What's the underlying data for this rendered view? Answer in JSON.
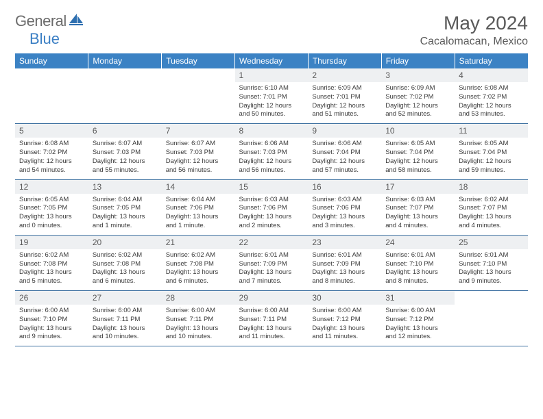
{
  "brand": {
    "part1": "General",
    "part2": "Blue"
  },
  "title": "May 2024",
  "location": "Cacalomacan, Mexico",
  "colors": {
    "header_bg": "#3b82c4",
    "header_text": "#ffffff",
    "daynum_bg": "#eef0f2",
    "row_divider": "#3b6fa0",
    "text": "#3a3a3a",
    "logo_gray": "#6b6b6b",
    "logo_blue": "#3b7fc4"
  },
  "weekdays": [
    "Sunday",
    "Monday",
    "Tuesday",
    "Wednesday",
    "Thursday",
    "Friday",
    "Saturday"
  ],
  "weeks": [
    [
      {
        "n": "",
        "d": ""
      },
      {
        "n": "",
        "d": ""
      },
      {
        "n": "",
        "d": ""
      },
      {
        "n": "1",
        "d": "Sunrise: 6:10 AM\nSunset: 7:01 PM\nDaylight: 12 hours and 50 minutes."
      },
      {
        "n": "2",
        "d": "Sunrise: 6:09 AM\nSunset: 7:01 PM\nDaylight: 12 hours and 51 minutes."
      },
      {
        "n": "3",
        "d": "Sunrise: 6:09 AM\nSunset: 7:02 PM\nDaylight: 12 hours and 52 minutes."
      },
      {
        "n": "4",
        "d": "Sunrise: 6:08 AM\nSunset: 7:02 PM\nDaylight: 12 hours and 53 minutes."
      }
    ],
    [
      {
        "n": "5",
        "d": "Sunrise: 6:08 AM\nSunset: 7:02 PM\nDaylight: 12 hours and 54 minutes."
      },
      {
        "n": "6",
        "d": "Sunrise: 6:07 AM\nSunset: 7:03 PM\nDaylight: 12 hours and 55 minutes."
      },
      {
        "n": "7",
        "d": "Sunrise: 6:07 AM\nSunset: 7:03 PM\nDaylight: 12 hours and 56 minutes."
      },
      {
        "n": "8",
        "d": "Sunrise: 6:06 AM\nSunset: 7:03 PM\nDaylight: 12 hours and 56 minutes."
      },
      {
        "n": "9",
        "d": "Sunrise: 6:06 AM\nSunset: 7:04 PM\nDaylight: 12 hours and 57 minutes."
      },
      {
        "n": "10",
        "d": "Sunrise: 6:05 AM\nSunset: 7:04 PM\nDaylight: 12 hours and 58 minutes."
      },
      {
        "n": "11",
        "d": "Sunrise: 6:05 AM\nSunset: 7:04 PM\nDaylight: 12 hours and 59 minutes."
      }
    ],
    [
      {
        "n": "12",
        "d": "Sunrise: 6:05 AM\nSunset: 7:05 PM\nDaylight: 13 hours and 0 minutes."
      },
      {
        "n": "13",
        "d": "Sunrise: 6:04 AM\nSunset: 7:05 PM\nDaylight: 13 hours and 1 minute."
      },
      {
        "n": "14",
        "d": "Sunrise: 6:04 AM\nSunset: 7:06 PM\nDaylight: 13 hours and 1 minute."
      },
      {
        "n": "15",
        "d": "Sunrise: 6:03 AM\nSunset: 7:06 PM\nDaylight: 13 hours and 2 minutes."
      },
      {
        "n": "16",
        "d": "Sunrise: 6:03 AM\nSunset: 7:06 PM\nDaylight: 13 hours and 3 minutes."
      },
      {
        "n": "17",
        "d": "Sunrise: 6:03 AM\nSunset: 7:07 PM\nDaylight: 13 hours and 4 minutes."
      },
      {
        "n": "18",
        "d": "Sunrise: 6:02 AM\nSunset: 7:07 PM\nDaylight: 13 hours and 4 minutes."
      }
    ],
    [
      {
        "n": "19",
        "d": "Sunrise: 6:02 AM\nSunset: 7:08 PM\nDaylight: 13 hours and 5 minutes."
      },
      {
        "n": "20",
        "d": "Sunrise: 6:02 AM\nSunset: 7:08 PM\nDaylight: 13 hours and 6 minutes."
      },
      {
        "n": "21",
        "d": "Sunrise: 6:02 AM\nSunset: 7:08 PM\nDaylight: 13 hours and 6 minutes."
      },
      {
        "n": "22",
        "d": "Sunrise: 6:01 AM\nSunset: 7:09 PM\nDaylight: 13 hours and 7 minutes."
      },
      {
        "n": "23",
        "d": "Sunrise: 6:01 AM\nSunset: 7:09 PM\nDaylight: 13 hours and 8 minutes."
      },
      {
        "n": "24",
        "d": "Sunrise: 6:01 AM\nSunset: 7:10 PM\nDaylight: 13 hours and 8 minutes."
      },
      {
        "n": "25",
        "d": "Sunrise: 6:01 AM\nSunset: 7:10 PM\nDaylight: 13 hours and 9 minutes."
      }
    ],
    [
      {
        "n": "26",
        "d": "Sunrise: 6:00 AM\nSunset: 7:10 PM\nDaylight: 13 hours and 9 minutes."
      },
      {
        "n": "27",
        "d": "Sunrise: 6:00 AM\nSunset: 7:11 PM\nDaylight: 13 hours and 10 minutes."
      },
      {
        "n": "28",
        "d": "Sunrise: 6:00 AM\nSunset: 7:11 PM\nDaylight: 13 hours and 10 minutes."
      },
      {
        "n": "29",
        "d": "Sunrise: 6:00 AM\nSunset: 7:11 PM\nDaylight: 13 hours and 11 minutes."
      },
      {
        "n": "30",
        "d": "Sunrise: 6:00 AM\nSunset: 7:12 PM\nDaylight: 13 hours and 11 minutes."
      },
      {
        "n": "31",
        "d": "Sunrise: 6:00 AM\nSunset: 7:12 PM\nDaylight: 13 hours and 12 minutes."
      },
      {
        "n": "",
        "d": ""
      }
    ]
  ]
}
